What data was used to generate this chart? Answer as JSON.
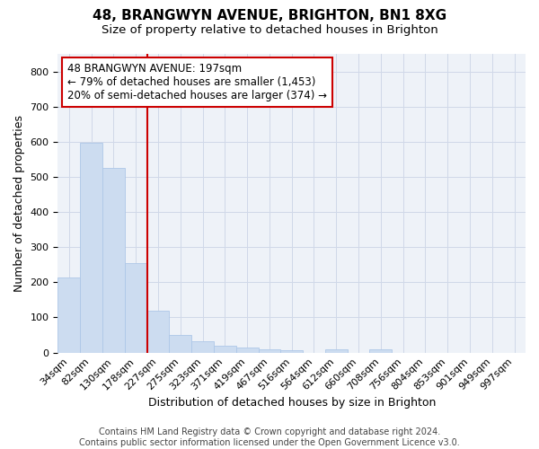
{
  "title_line1": "48, BRANGWYN AVENUE, BRIGHTON, BN1 8XG",
  "title_line2": "Size of property relative to detached houses in Brighton",
  "xlabel": "Distribution of detached houses by size in Brighton",
  "ylabel": "Number of detached properties",
  "categories": [
    "34sqm",
    "82sqm",
    "130sqm",
    "178sqm",
    "227sqm",
    "275sqm",
    "323sqm",
    "371sqm",
    "419sqm",
    "467sqm",
    "516sqm",
    "564sqm",
    "612sqm",
    "660sqm",
    "708sqm",
    "756sqm",
    "804sqm",
    "853sqm",
    "901sqm",
    "949sqm",
    "997sqm"
  ],
  "values": [
    213,
    598,
    525,
    255,
    118,
    50,
    32,
    20,
    15,
    10,
    7,
    0,
    8,
    0,
    8,
    0,
    0,
    0,
    0,
    0,
    0
  ],
  "bar_color": "#ccdcf0",
  "bar_edgecolor": "#aec8e8",
  "vline_x": 3.5,
  "vline_color": "#cc0000",
  "annotation_text": "48 BRANGWYN AVENUE: 197sqm\n← 79% of detached houses are smaller (1,453)\n20% of semi-detached houses are larger (374) →",
  "annotation_box_color": "#cc0000",
  "ylim": [
    0,
    850
  ],
  "yticks": [
    0,
    100,
    200,
    300,
    400,
    500,
    600,
    700,
    800
  ],
  "grid_color": "#d0d8e8",
  "bg_color": "#eef2f8",
  "footer_text": "Contains HM Land Registry data © Crown copyright and database right 2024.\nContains public sector information licensed under the Open Government Licence v3.0.",
  "title_fontsize": 11,
  "subtitle_fontsize": 9.5,
  "label_fontsize": 9,
  "tick_fontsize": 8,
  "annotation_fontsize": 8.5,
  "footer_fontsize": 7
}
